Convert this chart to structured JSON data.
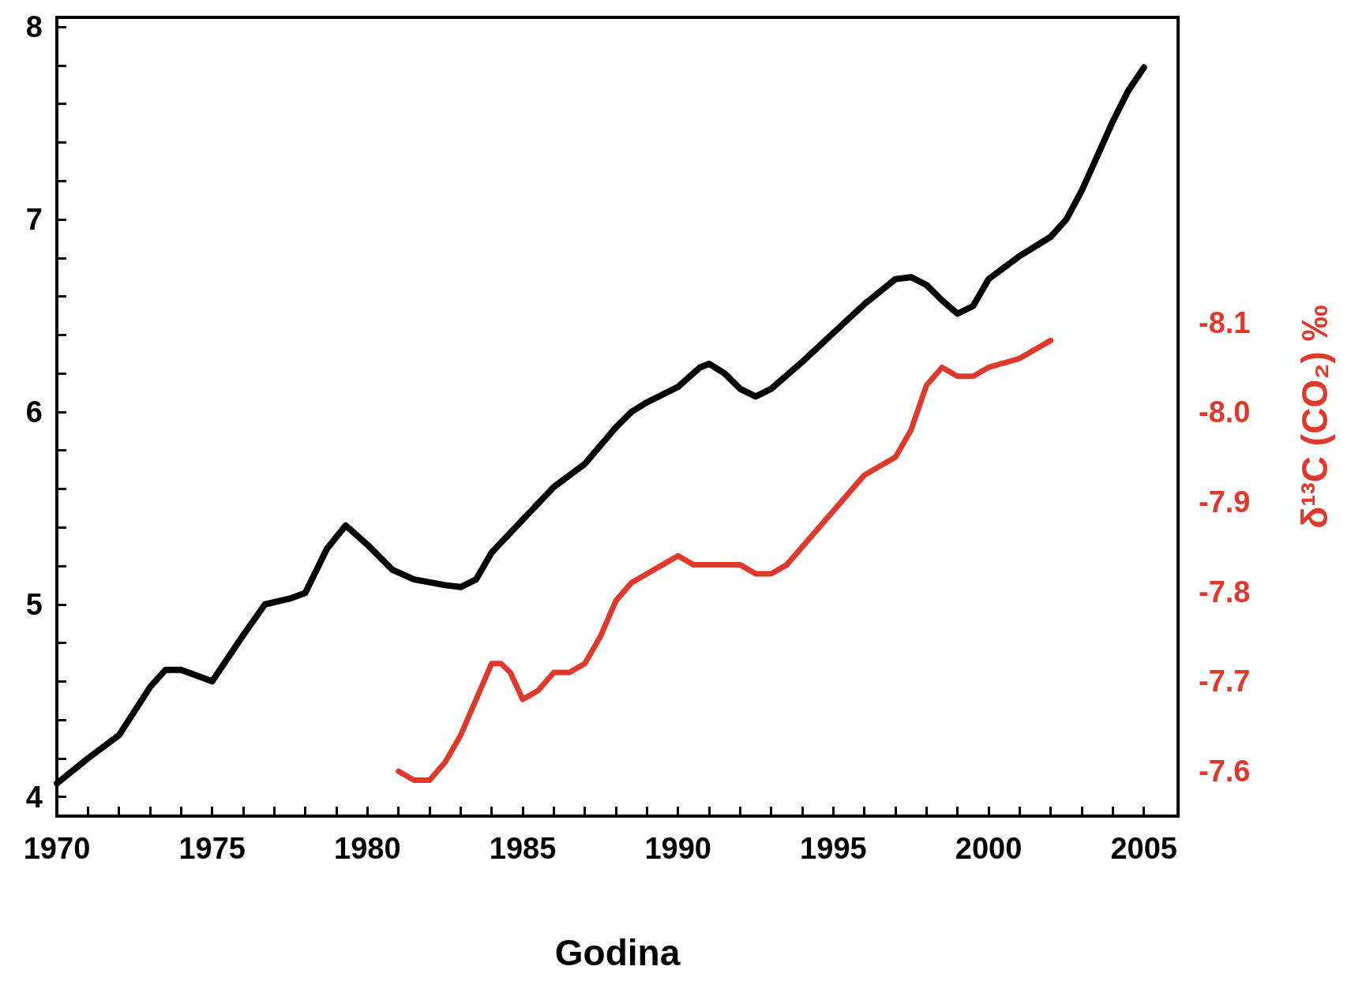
{
  "chart_data": {
    "type": "line",
    "xlabel": "Godina",
    "y2label": "δ¹³C (CO₂) ‰",
    "xlim": [
      1970,
      2006.1
    ],
    "xticks": [
      1970,
      {
        "value": 1971,
        "label": null
      },
      {
        "value": 1972,
        "label": null
      },
      {
        "value": 1973,
        "label": null
      },
      {
        "value": 1974,
        "label": null
      },
      1975,
      {
        "value": 1976,
        "label": null
      },
      {
        "value": 1977,
        "label": null
      },
      {
        "value": 1978,
        "label": null
      },
      {
        "value": 1979,
        "label": null
      },
      1980,
      {
        "value": 1981,
        "label": null
      },
      {
        "value": 1982,
        "label": null
      },
      {
        "value": 1983,
        "label": null
      },
      {
        "value": 1984,
        "label": null
      },
      1985,
      {
        "value": 1986,
        "label": null
      },
      {
        "value": 1987,
        "label": null
      },
      {
        "value": 1988,
        "label": null
      },
      {
        "value": 1989,
        "label": null
      },
      1990,
      {
        "value": 1991,
        "label": null
      },
      {
        "value": 1992,
        "label": null
      },
      {
        "value": 1993,
        "label": null
      },
      {
        "value": 1994,
        "label": null
      },
      1995,
      {
        "value": 1996,
        "label": null
      },
      {
        "value": 1997,
        "label": null
      },
      {
        "value": 1998,
        "label": null
      },
      {
        "value": 1999,
        "label": null
      },
      2000,
      {
        "value": 2001,
        "label": null
      },
      {
        "value": 2002,
        "label": null
      },
      {
        "value": 2003,
        "label": null
      },
      {
        "value": 2004,
        "label": null
      },
      2005
    ],
    "ylim": [
      3.9,
      8.05
    ],
    "yticks": [
      4,
      {
        "value": 4.2,
        "label": null
      },
      {
        "value": 4.4,
        "label": null
      },
      {
        "value": 4.6,
        "label": null
      },
      {
        "value": 4.8,
        "label": null
      },
      5,
      {
        "value": 5.2,
        "label": null
      },
      {
        "value": 5.4,
        "label": null
      },
      {
        "value": 5.6,
        "label": null
      },
      {
        "value": 5.8,
        "label": null
      },
      6,
      {
        "value": 6.2,
        "label": null
      },
      {
        "value": 6.4,
        "label": null
      },
      {
        "value": 6.6,
        "label": null
      },
      {
        "value": 6.8,
        "label": null
      },
      7,
      {
        "value": 7.2,
        "label": null
      },
      {
        "value": 7.4,
        "label": null
      },
      {
        "value": 7.6,
        "label": null
      },
      {
        "value": 7.8,
        "label": null
      },
      8
    ],
    "y2lim": [
      -7.55,
      -8.44
    ],
    "y2ticks": [
      {
        "value": -7.6,
        "label": "-7.6"
      },
      {
        "value": -7.7,
        "label": "-7.7"
      },
      {
        "value": -7.8,
        "label": "-7.8"
      },
      {
        "value": -7.9,
        "label": "-7.9"
      },
      {
        "value": -8.0,
        "label": "-8.0"
      },
      {
        "value": -8.1,
        "label": "-8.1"
      }
    ],
    "grid": false,
    "marker": "none",
    "line_style": "solid",
    "series": [
      {
        "color": "#000000",
        "x": [
          1970,
          1971,
          1972,
          1973,
          1973.5,
          1974,
          1975,
          1976,
          1976.7,
          1977.5,
          1978,
          1978.7,
          1979.3,
          1980,
          1980.8,
          1981.5,
          1982.5,
          1983,
          1983.5,
          1984,
          1985,
          1986,
          1987,
          1988,
          1988.5,
          1989,
          1990,
          1990.7,
          1991,
          1991.5,
          1992,
          1992.5,
          1993,
          1994,
          1995,
          1996,
          1997,
          1997.5,
          1998,
          1998.5,
          1999,
          1999.5,
          2000,
          2001,
          2002,
          2002.5,
          2003,
          2003.5,
          2004,
          2004.5,
          2005
        ],
        "values": [
          4.07,
          4.2,
          4.32,
          4.57,
          4.66,
          4.66,
          4.6,
          4.84,
          5.0,
          5.03,
          5.06,
          5.29,
          5.41,
          5.31,
          5.18,
          5.13,
          5.1,
          5.09,
          5.13,
          5.27,
          5.44,
          5.61,
          5.73,
          5.92,
          6.0,
          6.05,
          6.13,
          6.23,
          6.25,
          6.2,
          6.12,
          6.08,
          6.12,
          6.26,
          6.41,
          6.56,
          6.69,
          6.7,
          6.66,
          6.58,
          6.51,
          6.55,
          6.69,
          6.81,
          6.91,
          7.0,
          7.15,
          7.33,
          7.51,
          7.67,
          7.79
        ]
      },
      {
        "color": "#e0392b",
        "axis": "y2",
        "x": [
          1981,
          1981.5,
          1982,
          1982.5,
          1983,
          1983.5,
          1984,
          1984.3,
          1984.6,
          1985,
          1985.5,
          1986,
          1986.5,
          1987,
          1987.5,
          1988,
          1988.5,
          1989,
          1989.5,
          1990,
          1990.5,
          1991,
          1991.5,
          1992,
          1992.5,
          1993,
          1993.5,
          1994,
          1995,
          1996,
          1996.5,
          1997,
          1997.5,
          1998,
          1998.5,
          1999,
          1999.5,
          2000,
          2001,
          2002
        ],
        "values": [
          -7.6,
          -7.59,
          -7.59,
          -7.61,
          -7.64,
          -7.68,
          -7.72,
          -7.72,
          -7.71,
          -7.68,
          -7.69,
          -7.71,
          -7.71,
          -7.72,
          -7.75,
          -7.79,
          -7.81,
          -7.82,
          -7.83,
          -7.84,
          -7.83,
          -7.83,
          -7.83,
          -7.83,
          -7.82,
          -7.82,
          -7.83,
          -7.85,
          -7.89,
          -7.93,
          -7.94,
          -7.95,
          -7.98,
          -8.03,
          -8.05,
          -8.04,
          -8.04,
          -8.05,
          -8.06,
          -8.08
        ]
      }
    ]
  }
}
